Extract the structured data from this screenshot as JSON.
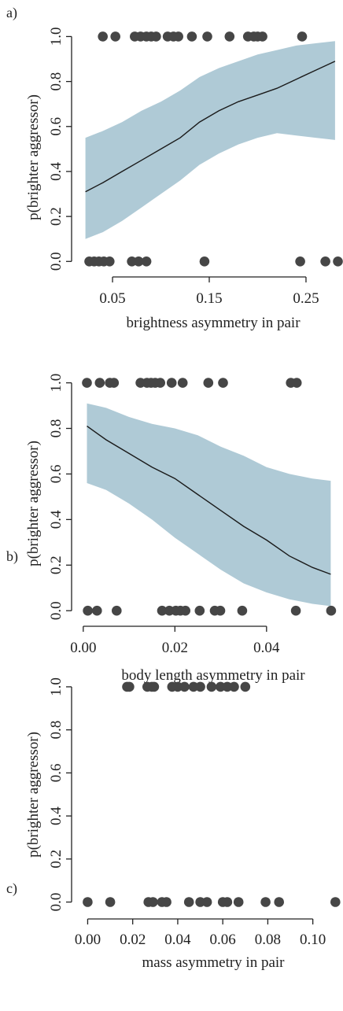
{
  "chart_data": [
    {
      "panel_label": "a)",
      "type": "scatter",
      "xlabel": "brightness asymmetry in pair",
      "ylabel": "p(brighter aggressor)",
      "xlim": [
        0.015,
        0.285
      ],
      "ylim": [
        -0.02,
        1.04
      ],
      "xticks": [
        0.05,
        0.15,
        0.25
      ],
      "xtick_labels": [
        "0.05",
        "0.15",
        "0.25"
      ],
      "yticks": [
        0.0,
        0.2,
        0.4,
        0.6,
        0.8,
        1.0
      ],
      "ytick_labels": [
        "0.0",
        "0.2",
        "0.4",
        "0.6",
        "0.8",
        "1.0"
      ],
      "points": [
        {
          "x": 0.026,
          "y": 0
        },
        {
          "x": 0.031,
          "y": 0
        },
        {
          "x": 0.036,
          "y": 0
        },
        {
          "x": 0.041,
          "y": 0
        },
        {
          "x": 0.047,
          "y": 0
        },
        {
          "x": 0.07,
          "y": 0
        },
        {
          "x": 0.077,
          "y": 0
        },
        {
          "x": 0.085,
          "y": 0
        },
        {
          "x": 0.145,
          "y": 0
        },
        {
          "x": 0.244,
          "y": 0
        },
        {
          "x": 0.27,
          "y": 0
        },
        {
          "x": 0.283,
          "y": 0
        },
        {
          "x": 0.04,
          "y": 1
        },
        {
          "x": 0.053,
          "y": 1
        },
        {
          "x": 0.073,
          "y": 1
        },
        {
          "x": 0.079,
          "y": 1
        },
        {
          "x": 0.085,
          "y": 1
        },
        {
          "x": 0.09,
          "y": 1
        },
        {
          "x": 0.095,
          "y": 1
        },
        {
          "x": 0.107,
          "y": 1
        },
        {
          "x": 0.113,
          "y": 1
        },
        {
          "x": 0.118,
          "y": 1
        },
        {
          "x": 0.132,
          "y": 1
        },
        {
          "x": 0.148,
          "y": 1
        },
        {
          "x": 0.171,
          "y": 1
        },
        {
          "x": 0.19,
          "y": 1
        },
        {
          "x": 0.196,
          "y": 1
        },
        {
          "x": 0.2,
          "y": 1
        },
        {
          "x": 0.205,
          "y": 1
        },
        {
          "x": 0.246,
          "y": 1
        }
      ],
      "fit": {
        "x": [
          0.022,
          0.04,
          0.06,
          0.08,
          0.1,
          0.12,
          0.14,
          0.16,
          0.18,
          0.2,
          0.22,
          0.24,
          0.26,
          0.28
        ],
        "y": [
          0.31,
          0.35,
          0.4,
          0.45,
          0.5,
          0.55,
          0.62,
          0.67,
          0.71,
          0.74,
          0.77,
          0.81,
          0.85,
          0.89
        ],
        "lower": [
          0.1,
          0.13,
          0.18,
          0.24,
          0.3,
          0.36,
          0.43,
          0.48,
          0.52,
          0.55,
          0.57,
          0.56,
          0.55,
          0.54
        ],
        "upper": [
          0.55,
          0.58,
          0.62,
          0.67,
          0.71,
          0.76,
          0.82,
          0.86,
          0.89,
          0.92,
          0.94,
          0.96,
          0.97,
          0.98
        ]
      },
      "band_color": "#afcad6",
      "line_color": "#1a1a1a",
      "point_color": "#464646"
    },
    {
      "panel_label": "b)",
      "type": "scatter",
      "xlabel": "body length asymmetry in pair",
      "ylabel": "p(brighter aggressor)",
      "xlim": [
        -0.001,
        0.056
      ],
      "ylim": [
        -0.02,
        1.04
      ],
      "xticks": [
        0.0,
        0.02,
        0.04
      ],
      "xtick_labels": [
        "0.00",
        "0.02",
        "0.04"
      ],
      "yticks": [
        0.0,
        0.2,
        0.4,
        0.6,
        0.8,
        1.0
      ],
      "ytick_labels": [
        "0.0",
        "0.2",
        "0.4",
        "0.6",
        "0.8",
        "1.0"
      ],
      "points": [
        {
          "x": 0.001,
          "y": 0
        },
        {
          "x": 0.003,
          "y": 0
        },
        {
          "x": 0.0073,
          "y": 0
        },
        {
          "x": 0.0172,
          "y": 0
        },
        {
          "x": 0.0188,
          "y": 0
        },
        {
          "x": 0.0202,
          "y": 0
        },
        {
          "x": 0.0212,
          "y": 0
        },
        {
          "x": 0.0223,
          "y": 0
        },
        {
          "x": 0.0254,
          "y": 0
        },
        {
          "x": 0.0287,
          "y": 0
        },
        {
          "x": 0.0299,
          "y": 0
        },
        {
          "x": 0.0347,
          "y": 0
        },
        {
          "x": 0.0464,
          "y": 0
        },
        {
          "x": 0.0541,
          "y": 0
        },
        {
          "x": 0.0008,
          "y": 1
        },
        {
          "x": 0.0036,
          "y": 1
        },
        {
          "x": 0.0058,
          "y": 1
        },
        {
          "x": 0.0067,
          "y": 1
        },
        {
          "x": 0.0125,
          "y": 1
        },
        {
          "x": 0.0139,
          "y": 1
        },
        {
          "x": 0.0148,
          "y": 1
        },
        {
          "x": 0.0157,
          "y": 1
        },
        {
          "x": 0.0168,
          "y": 1
        },
        {
          "x": 0.0193,
          "y": 1
        },
        {
          "x": 0.0217,
          "y": 1
        },
        {
          "x": 0.0273,
          "y": 1
        },
        {
          "x": 0.0305,
          "y": 1
        },
        {
          "x": 0.0453,
          "y": 1
        },
        {
          "x": 0.0466,
          "y": 1
        }
      ],
      "fit": {
        "x": [
          0.0008,
          0.005,
          0.01,
          0.015,
          0.02,
          0.025,
          0.03,
          0.035,
          0.04,
          0.045,
          0.05,
          0.054
        ],
        "y": [
          0.81,
          0.75,
          0.69,
          0.63,
          0.58,
          0.51,
          0.44,
          0.37,
          0.31,
          0.24,
          0.19,
          0.16
        ],
        "lower": [
          0.56,
          0.53,
          0.47,
          0.4,
          0.32,
          0.25,
          0.18,
          0.12,
          0.08,
          0.05,
          0.03,
          0.02
        ],
        "upper": [
          0.91,
          0.89,
          0.85,
          0.82,
          0.8,
          0.77,
          0.72,
          0.68,
          0.63,
          0.6,
          0.58,
          0.57
        ]
      },
      "band_color": "#afcad6",
      "line_color": "#1a1a1a",
      "point_color": "#464646"
    },
    {
      "panel_label": "c)",
      "type": "scatter",
      "xlabel": "mass asymmetry in pair",
      "ylabel": "p(brighter aggressor)",
      "xlim": [
        -0.004,
        0.112
      ],
      "ylim": [
        -0.02,
        1.04
      ],
      "xticks": [
        0.0,
        0.02,
        0.04,
        0.06,
        0.08,
        0.1
      ],
      "xtick_labels": [
        "0.00",
        "0.02",
        "0.04",
        "0.06",
        "0.08",
        "0.10"
      ],
      "yticks": [
        0.0,
        0.2,
        0.4,
        0.6,
        0.8,
        1.0
      ],
      "ytick_labels": [
        "0.0",
        "0.2",
        "0.4",
        "0.6",
        "0.8",
        "1.0"
      ],
      "points": [
        {
          "x": 0.0,
          "y": 0
        },
        {
          "x": 0.01,
          "y": 0
        },
        {
          "x": 0.027,
          "y": 0
        },
        {
          "x": 0.029,
          "y": 0
        },
        {
          "x": 0.033,
          "y": 0
        },
        {
          "x": 0.035,
          "y": 0
        },
        {
          "x": 0.045,
          "y": 0
        },
        {
          "x": 0.05,
          "y": 0
        },
        {
          "x": 0.053,
          "y": 0
        },
        {
          "x": 0.06,
          "y": 0
        },
        {
          "x": 0.062,
          "y": 0
        },
        {
          "x": 0.067,
          "y": 0
        },
        {
          "x": 0.079,
          "y": 0
        },
        {
          "x": 0.085,
          "y": 0
        },
        {
          "x": 0.11,
          "y": 0
        },
        {
          "x": 0.0175,
          "y": 1
        },
        {
          "x": 0.0185,
          "y": 1
        },
        {
          "x": 0.0265,
          "y": 1
        },
        {
          "x": 0.0285,
          "y": 1
        },
        {
          "x": 0.0295,
          "y": 1
        },
        {
          "x": 0.0375,
          "y": 1
        },
        {
          "x": 0.04,
          "y": 1
        },
        {
          "x": 0.043,
          "y": 1
        },
        {
          "x": 0.047,
          "y": 1
        },
        {
          "x": 0.05,
          "y": 1
        },
        {
          "x": 0.055,
          "y": 1
        },
        {
          "x": 0.059,
          "y": 1
        },
        {
          "x": 0.062,
          "y": 1
        },
        {
          "x": 0.065,
          "y": 1
        },
        {
          "x": 0.07,
          "y": 1
        }
      ],
      "point_color": "#464646"
    }
  ]
}
